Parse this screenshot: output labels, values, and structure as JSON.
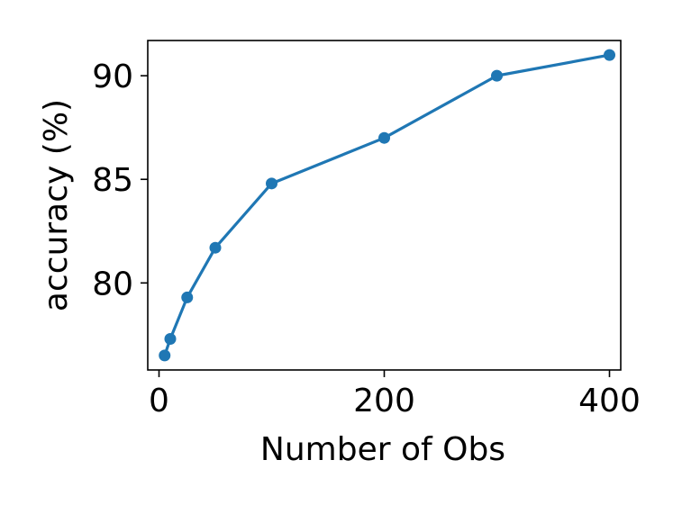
{
  "chart_data": {
    "type": "line",
    "title": "",
    "xlabel": "Number of Obs",
    "ylabel": "accuracy (%)",
    "xlim": [
      -10,
      410
    ],
    "ylim": [
      75.8,
      91.7
    ],
    "xticks": [
      0,
      200,
      400
    ],
    "xtick_labels": [
      "0",
      "200",
      "400"
    ],
    "yticks": [
      80,
      85,
      90
    ],
    "ytick_labels": [
      "80",
      "85",
      "90"
    ],
    "grid": false,
    "legend": "none",
    "series": [
      {
        "color": "#1f77b4",
        "x": [
          5,
          10,
          25,
          50,
          100,
          200,
          300,
          400
        ],
        "y": [
          76.5,
          77.3,
          79.3,
          81.7,
          84.8,
          87.0,
          90.0,
          91.0
        ]
      }
    ]
  }
}
